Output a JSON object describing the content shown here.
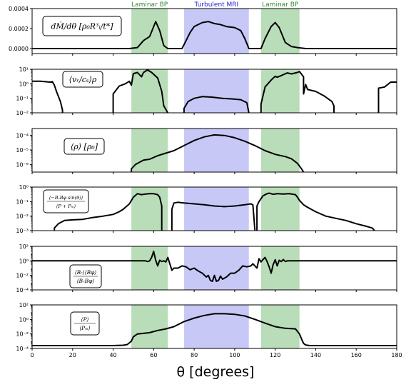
{
  "colors": {
    "laminar": "#b9dcb9",
    "turbulent": "#c8c8f7",
    "laminar_text": "#2a8a2a",
    "turbulent_text": "#2020cc",
    "line": "#000000"
  },
  "chart_data": {
    "type": "line",
    "xlabel": "θ [degrees]",
    "xlim": [
      0,
      180
    ],
    "xticks": [
      0,
      20,
      40,
      60,
      80,
      100,
      120,
      140,
      160,
      180
    ],
    "regions": [
      {
        "label": "Laminar BP",
        "x": [
          49,
          67
        ],
        "kind": "laminar"
      },
      {
        "label": "Turbulent MRI",
        "x": [
          75,
          107
        ],
        "kind": "turbulent"
      },
      {
        "label": "Laminar BP",
        "x": [
          113,
          132
        ],
        "kind": "laminar"
      }
    ],
    "panels": [
      {
        "label_lines": [
          "dṀ/dθ [ρ₀R³ᵢ/t*]"
        ],
        "yscale": "linear",
        "ylim": [
          -5e-05,
          0.0004
        ],
        "yticks": [
          0.0,
          0.0002,
          0.0004
        ],
        "ytick_labels": [
          "0.0000",
          "0.0002",
          "0.0004"
        ],
        "x": [
          0,
          48,
          52,
          55,
          58,
          61,
          63,
          65,
          67,
          74,
          76,
          78,
          80,
          82,
          84,
          87,
          90,
          93,
          96,
          100,
          103,
          105,
          107,
          113,
          115,
          118,
          120,
          122,
          125,
          128,
          131,
          135,
          180
        ],
        "y": [
          0,
          0,
          1e-05,
          8e-05,
          0.00012,
          0.00027,
          0.00018,
          3e-05,
          0,
          0,
          8e-05,
          0.00016,
          0.00022,
          0.00024,
          0.00026,
          0.00027,
          0.00025,
          0.00024,
          0.00022,
          0.00021,
          0.00018,
          0.0001,
          0,
          0,
          0.0001,
          0.00022,
          0.00026,
          0.00021,
          6e-05,
          2e-05,
          1e-05,
          0,
          0
        ]
      },
      {
        "label_lines": [
          "⟨vᵣ/cₛ⟩ρ"
        ],
        "yscale": "log",
        "ylim": [
          0.01,
          10
        ],
        "yticks": [
          10,
          1,
          0.1,
          0.01
        ],
        "ytick_labels": [
          "10¹",
          "10⁰",
          "10⁻¹",
          "10⁻²"
        ],
        "x": [
          0,
          4,
          9,
          10,
          11,
          12,
          14,
          15,
          15,
          null,
          40,
          40,
          43,
          46,
          48,
          49,
          50,
          52,
          54,
          55,
          57,
          59,
          62,
          64,
          65,
          67,
          67,
          null,
          75,
          75,
          77,
          80,
          84,
          89,
          94,
          99,
          103,
          106,
          107,
          null,
          113,
          113,
          115,
          118,
          120,
          121,
          123,
          126,
          128,
          131,
          132,
          134,
          134,
          135,
          136,
          140,
          144,
          148,
          149,
          149,
          null,
          171,
          171,
          174,
          177,
          180
        ],
        "y": [
          1.5,
          1.5,
          1.3,
          1.4,
          0.8,
          0.3,
          0.06,
          0.015,
          0.01,
          null,
          0.01,
          0.2,
          0.7,
          1.0,
          1.5,
          0.8,
          5,
          6,
          3,
          6,
          9,
          6,
          2.5,
          0.3,
          0.03,
          0.01,
          0.01,
          null,
          0.01,
          0.02,
          0.06,
          0.1,
          0.13,
          0.12,
          0.1,
          0.09,
          0.08,
          0.05,
          0.01,
          null,
          0.01,
          0.04,
          0.6,
          1.8,
          3.3,
          2.8,
          3.7,
          5.6,
          4.8,
          6,
          7,
          3,
          0.2,
          0.9,
          0.4,
          0.3,
          0.15,
          0.06,
          0.03,
          0.01,
          null,
          0.01,
          0.5,
          0.6,
          1.3,
          1.3
        ]
      },
      {
        "label_lines": [
          "⟨ρ⟩ [ρ₀]"
        ],
        "yscale": "log",
        "ylim": [
          3e-07,
          0.0003
        ],
        "yticks": [
          0.0001,
          1e-05,
          1e-06
        ],
        "ytick_labels": [
          "10⁻⁴",
          "10⁻⁵",
          "10⁻⁶"
        ],
        "x": [
          49,
          49,
          51,
          55,
          58,
          62,
          66,
          70,
          75,
          80,
          85,
          90,
          95,
          100,
          105,
          110,
          115,
          120,
          125,
          128,
          131,
          133,
          134
        ],
        "y": [
          3e-07,
          5e-07,
          1e-06,
          2e-06,
          2.3e-06,
          4e-06,
          6e-06,
          9e-06,
          2e-05,
          4.5e-05,
          8e-05,
          0.00011,
          0.0001,
          7e-05,
          4e-05,
          2e-05,
          9e-06,
          5e-06,
          3.5e-06,
          2.5e-06,
          1.2e-06,
          5e-07,
          3e-07
        ]
      },
      {
        "label_lines": [
          "⟨−BᵣBφ sin(θ)⟩",
          "⟨P + Pₘ⟩"
        ],
        "yscale": "log",
        "ylim": [
          0.001,
          1
        ],
        "yticks": [
          1,
          0.1,
          0.01,
          0.001
        ],
        "ytick_labels": [
          "10⁰",
          "10⁻¹",
          "10⁻²",
          "10⁻³"
        ],
        "x": [
          11,
          11,
          13,
          16,
          20,
          25,
          30,
          35,
          40,
          43,
          45,
          48,
          50,
          52,
          54,
          56,
          58,
          60,
          62,
          63,
          64,
          64,
          null,
          69,
          69,
          70,
          72,
          75,
          80,
          85,
          90,
          95,
          100,
          105,
          108,
          109,
          110,
          null,
          111,
          111,
          112,
          114,
          116,
          117,
          119,
          121,
          124,
          127,
          130,
          131,
          132,
          134,
          136,
          140,
          145,
          150,
          155,
          160,
          165,
          168,
          169
        ],
        "y": [
          0.001,
          0.0015,
          0.003,
          0.005,
          0.0055,
          0.006,
          0.008,
          0.01,
          0.013,
          0.02,
          0.03,
          0.07,
          0.2,
          0.35,
          0.3,
          0.33,
          0.35,
          0.35,
          0.3,
          0.2,
          0.05,
          0.001,
          null,
          0.001,
          0.03,
          0.08,
          0.09,
          0.08,
          0.07,
          0.06,
          0.05,
          0.045,
          0.05,
          0.06,
          0.07,
          0.06,
          0.001,
          null,
          0.001,
          0.05,
          0.1,
          0.25,
          0.35,
          0.38,
          0.32,
          0.35,
          0.33,
          0.35,
          0.3,
          0.2,
          0.12,
          0.06,
          0.04,
          0.02,
          0.01,
          0.007,
          0.005,
          0.003,
          0.002,
          0.0015,
          0.001
        ]
      },
      {
        "label_lines": [
          "⟨Bᵣ⟩⟨Bφ⟩",
          "⟨BᵣBφ⟩"
        ],
        "yscale": "log",
        "ylim": [
          0.0001,
          100
        ],
        "yticks": [
          100,
          1,
          0.01,
          0.0001
        ],
        "ytick_labels": [
          "10²",
          "10⁰",
          "10⁻²",
          "10⁻⁴"
        ],
        "x": [
          0,
          56,
          57,
          58,
          59,
          60,
          61,
          62,
          63,
          64,
          65,
          66,
          67,
          68,
          69,
          70,
          72,
          74,
          76,
          78,
          80,
          82,
          84,
          86,
          87,
          88,
          89,
          90,
          91,
          92,
          93,
          94,
          96,
          98,
          100,
          102,
          104,
          106,
          108,
          109,
          110,
          111,
          112,
          113,
          114,
          115,
          116,
          117,
          118,
          119,
          120,
          121,
          122,
          123,
          124,
          125,
          126,
          180
        ],
        "y": [
          1,
          1,
          0.8,
          1,
          3,
          20,
          1.2,
          0.2,
          1.2,
          0.8,
          1,
          0.7,
          3,
          0.4,
          0.05,
          0.1,
          0.1,
          0.2,
          0.15,
          0.06,
          0.1,
          0.04,
          0.02,
          0.006,
          0.01,
          0.002,
          0.0015,
          0.01,
          0.0015,
          0.002,
          0.008,
          0.003,
          0.006,
          0.02,
          0.02,
          0.05,
          0.2,
          0.15,
          0.2,
          0.4,
          0.2,
          0.1,
          2,
          0.7,
          1.5,
          3,
          0.8,
          0.15,
          0.02,
          0.3,
          1.4,
          0.2,
          1.2,
          0.8,
          1.5,
          0.8,
          1,
          1
        ]
      },
      {
        "label_lines": [
          "⟨P⟩",
          "⟨Pₘ⟩"
        ],
        "yscale": "log",
        "ylim": [
          0.0001,
          100
        ],
        "yticks": [
          100,
          1,
          0.01,
          0.0001
        ],
        "ytick_labels": [
          "10²",
          "10⁰",
          "10⁻²",
          "10⁻⁴"
        ],
        "x": [
          0,
          10,
          20,
          30,
          40,
          45,
          47,
          48,
          49,
          50,
          52,
          55,
          58,
          62,
          66,
          70,
          75,
          80,
          85,
          90,
          95,
          100,
          105,
          110,
          115,
          120,
          125,
          130,
          132,
          133,
          134,
          135,
          137,
          140,
          150,
          160,
          170,
          180
        ],
        "y": [
          0.00025,
          0.00025,
          0.00025,
          0.00025,
          0.00025,
          0.00028,
          0.00035,
          0.0006,
          0.001,
          0.004,
          0.01,
          0.012,
          0.015,
          0.03,
          0.05,
          0.1,
          0.5,
          1.5,
          3.5,
          6,
          6,
          5,
          3,
          1,
          0.3,
          0.1,
          0.06,
          0.05,
          0.01,
          0.002,
          0.0005,
          0.0003,
          0.00025,
          0.00025,
          0.00025,
          0.00025,
          0.00025,
          0.00025
        ]
      }
    ]
  }
}
